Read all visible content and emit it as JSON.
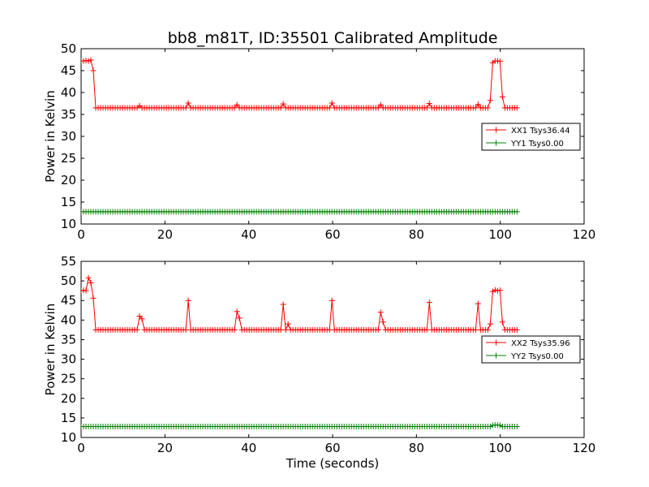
{
  "chart_data": {
    "type": "line",
    "title": "bb8_m81T, ID:35501 Calibrated Amplitude",
    "xlabel": "Time (seconds)",
    "panels": [
      {
        "ylabel": "Power in Kelvin",
        "xlim": [
          0,
          120
        ],
        "ylim": [
          10,
          50
        ],
        "xticks": [
          "0",
          "20",
          "40",
          "60",
          "80",
          "100",
          "120"
        ],
        "yticks": [
          "10",
          "15",
          "20",
          "25",
          "30",
          "35",
          "40",
          "45",
          "50"
        ],
        "legend_position": "center-right",
        "series": [
          {
            "name": "XX1 Tsys36.44",
            "color": "#ff0000",
            "marker": "+",
            "baseline": 36.5,
            "x_start": 0,
            "x_end": 104,
            "n_points": 180,
            "overrides": [
              {
                "x": 0.0,
                "y": 47.2
              },
              {
                "x": 0.6,
                "y": 47.2
              },
              {
                "x": 1.2,
                "y": 47.3
              },
              {
                "x": 1.7,
                "y": 47.2
              },
              {
                "x": 2.3,
                "y": 47.4
              },
              {
                "x": 2.9,
                "y": 45.0
              },
              {
                "x": 3.5,
                "y": 36.5
              },
              {
                "x": 13.9,
                "y": 37.0
              },
              {
                "x": 25.4,
                "y": 37.6
              },
              {
                "x": 37.0,
                "y": 37.2
              },
              {
                "x": 48.5,
                "y": 37.4
              },
              {
                "x": 60.1,
                "y": 37.6
              },
              {
                "x": 71.7,
                "y": 37.2
              },
              {
                "x": 83.2,
                "y": 37.5
              },
              {
                "x": 94.8,
                "y": 37.3
              },
              {
                "x": 97.7,
                "y": 38.2
              },
              {
                "x": 98.3,
                "y": 46.8
              },
              {
                "x": 98.8,
                "y": 47.2
              },
              {
                "x": 99.4,
                "y": 47.2
              },
              {
                "x": 100.0,
                "y": 47.1
              },
              {
                "x": 100.6,
                "y": 39.0
              },
              {
                "x": 101.2,
                "y": 36.5
              }
            ]
          },
          {
            "name": "YY1 Tsys0.00",
            "color": "#008000",
            "marker": "+",
            "baseline": 12.8,
            "x_start": 0,
            "x_end": 104,
            "n_points": 180,
            "overrides": []
          }
        ]
      },
      {
        "ylabel": "Power in Kelvin",
        "xlim": [
          0,
          120
        ],
        "ylim": [
          10,
          55
        ],
        "xticks": [
          "0",
          "20",
          "40",
          "60",
          "80",
          "100",
          "120"
        ],
        "yticks": [
          "10",
          "15",
          "20",
          "25",
          "30",
          "35",
          "40",
          "45",
          "50",
          "55"
        ],
        "legend_position": "center-right",
        "series": [
          {
            "name": "XX2 Tsys35.96",
            "color": "#ff0000",
            "marker": "+",
            "baseline": 37.5,
            "x_start": 0,
            "x_end": 104,
            "n_points": 180,
            "overrides": [
              {
                "x": 0.0,
                "y": 47.5
              },
              {
                "x": 0.6,
                "y": 47.6
              },
              {
                "x": 1.2,
                "y": 47.5
              },
              {
                "x": 1.7,
                "y": 50.8
              },
              {
                "x": 2.3,
                "y": 49.5
              },
              {
                "x": 2.9,
                "y": 45.6
              },
              {
                "x": 3.5,
                "y": 37.5
              },
              {
                "x": 13.9,
                "y": 41.0
              },
              {
                "x": 14.5,
                "y": 40.3
              },
              {
                "x": 25.4,
                "y": 45.0
              },
              {
                "x": 37.0,
                "y": 42.2
              },
              {
                "x": 37.5,
                "y": 40.5
              },
              {
                "x": 48.5,
                "y": 44.0
              },
              {
                "x": 49.1,
                "y": 39.0
              },
              {
                "x": 60.1,
                "y": 45.0
              },
              {
                "x": 71.7,
                "y": 42.0
              },
              {
                "x": 72.2,
                "y": 39.5
              },
              {
                "x": 83.2,
                "y": 44.5
              },
              {
                "x": 94.8,
                "y": 44.2
              },
              {
                "x": 97.7,
                "y": 39.0
              },
              {
                "x": 98.3,
                "y": 47.3
              },
              {
                "x": 98.8,
                "y": 47.7
              },
              {
                "x": 99.4,
                "y": 47.5
              },
              {
                "x": 100.0,
                "y": 47.6
              },
              {
                "x": 100.6,
                "y": 39.5
              },
              {
                "x": 101.2,
                "y": 37.5
              }
            ]
          },
          {
            "name": "YY2 Tsys0.00",
            "color": "#008000",
            "marker": "+",
            "baseline": 12.8,
            "x_start": 0,
            "x_end": 104,
            "n_points": 180,
            "overrides": [
              {
                "x": 98.3,
                "y": 13.1
              },
              {
                "x": 98.8,
                "y": 13.2
              },
              {
                "x": 99.4,
                "y": 13.2
              },
              {
                "x": 100.0,
                "y": 13.1
              }
            ]
          }
        ]
      }
    ]
  }
}
